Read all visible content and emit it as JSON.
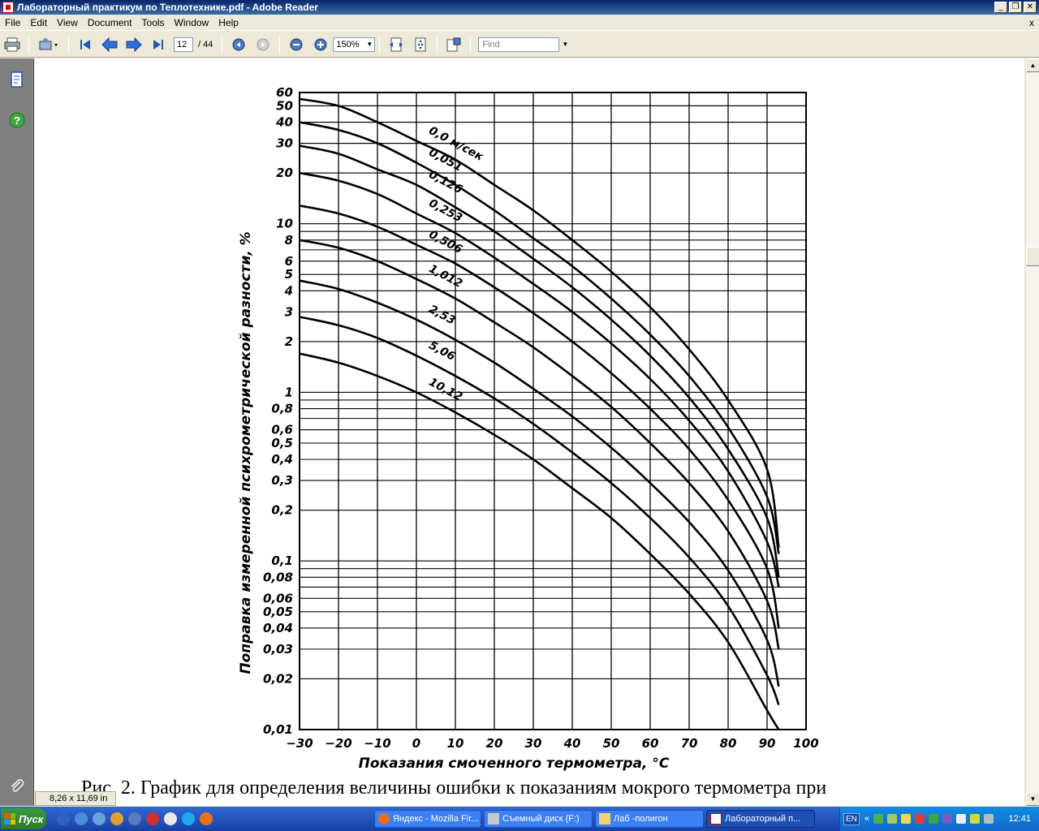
{
  "window": {
    "title": "Лабораторный практикум по Теплотехнике.pdf - Adobe Reader",
    "minimize": "_",
    "restore": "❐",
    "close": "✕"
  },
  "menu": {
    "items": [
      "File",
      "Edit",
      "View",
      "Document",
      "Tools",
      "Window",
      "Help"
    ],
    "close": "x"
  },
  "toolbar": {
    "current_page": "12",
    "total_pages": "/ 44",
    "zoom": "150%",
    "find_placeholder": "Find"
  },
  "chart_data": {
    "type": "line",
    "xlabel": "Показания смоченного термометра, °С",
    "ylabel": "Поправка измеренной психрометрической разности, %",
    "xlim": [
      -30,
      100
    ],
    "ylim": [
      0.01,
      60
    ],
    "log_y": true,
    "grid": true,
    "x_ticks": [
      -30,
      -20,
      -10,
      0,
      10,
      20,
      30,
      40,
      50,
      60,
      70,
      80,
      90,
      100
    ],
    "x_tick_labels": [
      "−30",
      "−20",
      "−10",
      "0",
      "10",
      "20",
      "30",
      "40",
      "50",
      "60",
      "70",
      "80",
      "90",
      "100"
    ],
    "y_ticks": [
      60,
      50,
      40,
      30,
      20,
      10,
      8,
      6,
      5,
      4,
      3,
      2,
      1,
      0.8,
      0.6,
      0.5,
      0.4,
      0.3,
      0.2,
      0.1,
      0.08,
      0.06,
      0.05,
      0.04,
      0.03,
      0.02,
      0.01
    ],
    "y_tick_labels": [
      "60",
      "50",
      "40",
      "30",
      "20",
      "10",
      "8",
      "6",
      "5",
      "4",
      "3",
      "2",
      "1",
      "0,8",
      "0,6",
      "0,5",
      "0,4",
      "0,3",
      "0,2",
      "0,1",
      "0,08",
      "0,06",
      "0,05",
      "0,04",
      "0,03",
      "0,02",
      "0,01"
    ],
    "series": [
      {
        "name": "0,0 м/сек",
        "x": [
          -30,
          -20,
          -10,
          0,
          10,
          20,
          30,
          40,
          50,
          60,
          70,
          80,
          90,
          93
        ],
        "values": [
          55,
          50,
          40,
          31,
          24,
          17,
          12,
          8,
          5.2,
          3.2,
          1.8,
          0.9,
          0.35,
          0.12
        ]
      },
      {
        "name": "0,051",
        "x": [
          -30,
          -20,
          -10,
          0,
          10,
          20,
          30,
          40,
          50,
          60,
          70,
          80,
          90,
          93
        ],
        "values": [
          40,
          36,
          30,
          23,
          17,
          12,
          8.2,
          5.6,
          3.6,
          2.2,
          1.25,
          0.62,
          0.24,
          0.11
        ]
      },
      {
        "name": "0,126",
        "x": [
          -30,
          -20,
          -10,
          0,
          10,
          20,
          30,
          40,
          50,
          60,
          70,
          80,
          90,
          93
        ],
        "values": [
          29,
          26,
          21,
          17,
          12.5,
          9,
          6.2,
          4.2,
          2.7,
          1.65,
          0.93,
          0.46,
          0.18,
          0.08
        ]
      },
      {
        "name": "0,253",
        "x": [
          -30,
          -20,
          -10,
          0,
          10,
          20,
          30,
          40,
          50,
          60,
          70,
          80,
          90,
          93
        ],
        "values": [
          20,
          18,
          15,
          11.5,
          8.8,
          6.3,
          4.4,
          3,
          1.95,
          1.2,
          0.68,
          0.34,
          0.13,
          0.07
        ]
      },
      {
        "name": "0,506",
        "x": [
          -30,
          -20,
          -10,
          0,
          10,
          20,
          30,
          40,
          50,
          60,
          70,
          80,
          90,
          93
        ],
        "values": [
          12.8,
          11.5,
          9.6,
          7.5,
          5.8,
          4.2,
          2.95,
          2,
          1.3,
          0.8,
          0.46,
          0.23,
          0.09,
          0.04
        ]
      },
      {
        "name": "1,012",
        "x": [
          -30,
          -20,
          -10,
          0,
          10,
          20,
          30,
          40,
          50,
          60,
          70,
          80,
          90,
          93
        ],
        "values": [
          8,
          7.2,
          6,
          4.7,
          3.6,
          2.6,
          1.85,
          1.25,
          0.82,
          0.5,
          0.29,
          0.15,
          0.058,
          0.03
        ]
      },
      {
        "name": "2,53",
        "x": [
          -30,
          -20,
          -10,
          0,
          10,
          20,
          30,
          40,
          50,
          60,
          70,
          80,
          90,
          93
        ],
        "values": [
          4.6,
          4.1,
          3.4,
          2.7,
          2.05,
          1.5,
          1.05,
          0.72,
          0.47,
          0.29,
          0.17,
          0.088,
          0.034,
          0.018
        ]
      },
      {
        "name": "5,06",
        "x": [
          -30,
          -20,
          -10,
          0,
          10,
          20,
          30,
          40,
          50,
          60,
          70,
          80,
          90,
          93
        ],
        "values": [
          2.8,
          2.5,
          2.1,
          1.65,
          1.25,
          0.92,
          0.65,
          0.44,
          0.29,
          0.18,
          0.105,
          0.054,
          0.021,
          0.014
        ]
      },
      {
        "name": "10,12",
        "x": [
          -30,
          -20,
          -10,
          0,
          10,
          20,
          30,
          40,
          50,
          60,
          70,
          80,
          90,
          93
        ],
        "values": [
          1.7,
          1.5,
          1.25,
          1,
          0.76,
          0.56,
          0.4,
          0.27,
          0.18,
          0.11,
          0.064,
          0.033,
          0.013,
          0.01
        ]
      }
    ]
  },
  "caption": "Рис. 2. График для определения величины ошибки к показаниям мокрого термометра при",
  "page_size": "8,26 x 11,69 in",
  "taskbar": {
    "start": "Пуск",
    "tasks": [
      "Яндекс - Mozilla Fir...",
      "Съемный диск (F:)",
      "Лаб -полигон",
      "Лабораторный п..."
    ],
    "lang": "EN",
    "chevron": "«",
    "clock": "12:41"
  },
  "colors": {
    "titlebar": "#0a246a",
    "taskbar": "#245edb",
    "start": "#3c9b3c",
    "nav_panel": "#808080"
  }
}
